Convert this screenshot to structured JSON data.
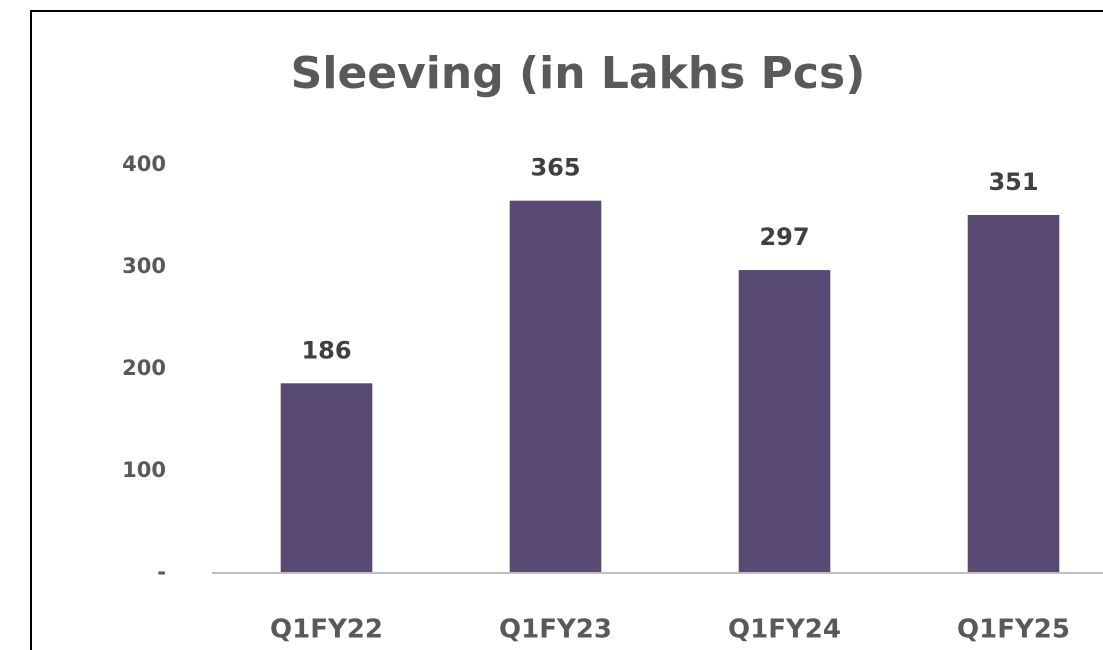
{
  "chart_data": {
    "type": "bar",
    "title": "Sleeving (in Lakhs Pcs)",
    "categories": [
      "Q1FY22",
      "Q1FY23",
      "Q1FY24",
      "Q1FY25"
    ],
    "values": [
      186,
      365,
      297,
      351
    ],
    "color": "#594a73",
    "ylim": [
      0,
      400
    ],
    "yticks": [
      {
        "value": 0,
        "label": "-"
      },
      100,
      200,
      300,
      400
    ],
    "grid": false
  }
}
